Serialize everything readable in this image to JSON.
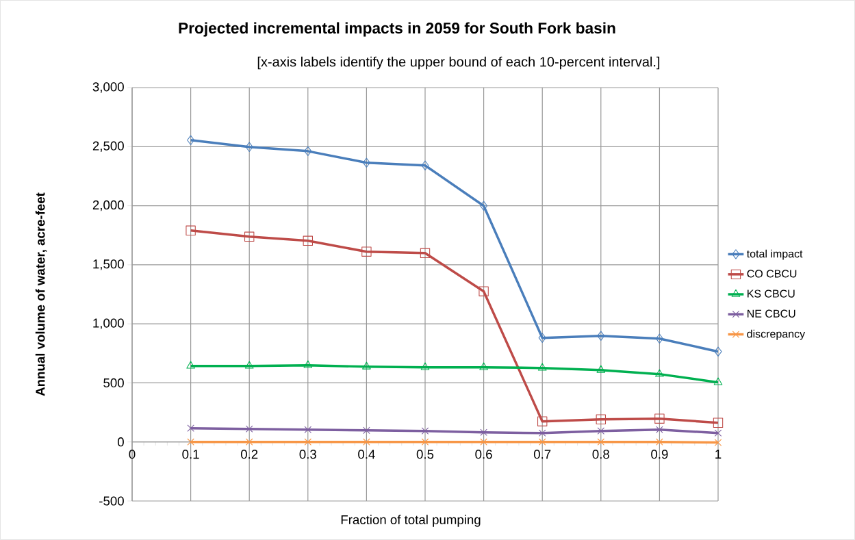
{
  "chart_data": {
    "type": "line",
    "title": "Projected incremental impacts in 2059 for South Fork basin",
    "subtitle": "[x-axis labels identify the upper bound of each 10-percent interval.]",
    "xlabel": "Fraction of total pumping",
    "ylabel": "Annual volume of water, acre-feet",
    "x": [
      0.1,
      0.2,
      0.3,
      0.4,
      0.5,
      0.6,
      0.7,
      0.8,
      0.9,
      1
    ],
    "series": [
      {
        "name": "total impact",
        "color": "#4a7ebb",
        "marker": "diamond",
        "values": [
          2555,
          2497,
          2462,
          2364,
          2341,
          1999,
          881,
          898,
          875,
          765
        ]
      },
      {
        "name": "CO CBCU",
        "color": "#be4b48",
        "marker": "square",
        "values": [
          1790,
          1738,
          1703,
          1611,
          1599,
          1275,
          174,
          191,
          197,
          162
        ]
      },
      {
        "name": "KS CBCU",
        "color": "#00b050",
        "marker": "triangle",
        "values": [
          643,
          643,
          649,
          637,
          632,
          632,
          626,
          608,
          574,
          504
        ]
      },
      {
        "name": "NE CBCU",
        "color": "#7d5fa0",
        "marker": "cross",
        "values": [
          116,
          110,
          104,
          98,
          93,
          81,
          75,
          93,
          104,
          75
        ]
      },
      {
        "name": "discrepancy",
        "color": "#f79646",
        "marker": "cross",
        "values": [
          0,
          0,
          0,
          0,
          0,
          0,
          0,
          0,
          0,
          -5
        ]
      }
    ],
    "xlim": [
      0,
      1
    ],
    "xticks": [
      0,
      0.1,
      0.2,
      0.3,
      0.4,
      0.5,
      0.6,
      0.7,
      0.8,
      0.9,
      1
    ],
    "ylim": [
      -500,
      3000
    ],
    "yticks": [
      {
        "value": -500,
        "label": "-500"
      },
      {
        "value": 0,
        "label": "0"
      },
      {
        "value": 500,
        "label": "500"
      },
      {
        "value": 1000,
        "label": "1,000"
      },
      {
        "value": 1500,
        "label": "1,500"
      },
      {
        "value": 2000,
        "label": "2,000"
      },
      {
        "value": 2500,
        "label": "2,500"
      },
      {
        "value": 3000,
        "label": "3,000"
      }
    ],
    "grid": true,
    "legend": "right",
    "line_style": "solid"
  }
}
